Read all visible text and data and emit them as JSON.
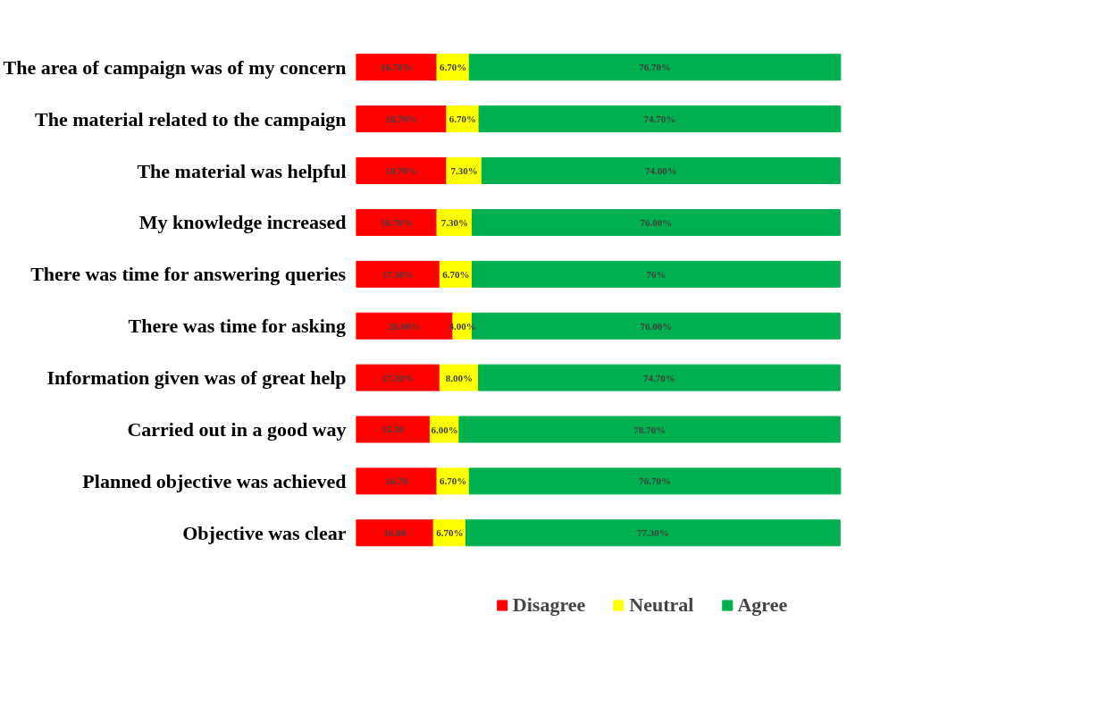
{
  "chart_data": {
    "type": "bar",
    "orientation": "horizontal",
    "stacked": true,
    "categories": [
      "The area of campaign was of my concern",
      "The material related to the campaign",
      "The material was helpful",
      "My knowledge increased",
      "There was time for answering queries",
      "There was time for asking",
      "Information given was of great help",
      "Carried out in a good way",
      "Planned objective was achieved",
      "Objective was clear"
    ],
    "series": [
      {
        "name": "Disagree",
        "color": "#ff0000",
        "values": [
          16.7,
          18.7,
          18.7,
          16.7,
          17.3,
          20.0,
          17.3,
          15.3,
          16.7,
          16.0
        ],
        "value_labels": [
          "16.70%",
          "18.70%",
          "18.70%",
          "16.70%",
          "17.30%",
          "20.00%",
          "17.30%",
          "15.30",
          "16.70",
          "16.00"
        ]
      },
      {
        "name": "Neutral",
        "color": "#ffff00",
        "values": [
          6.7,
          6.7,
          7.3,
          7.3,
          6.7,
          4.0,
          8.0,
          6.0,
          6.7,
          6.7
        ],
        "value_labels": [
          "6.70%",
          "6.70%",
          "7.30%",
          "7.30%",
          "6.70%",
          "4.00%",
          "8.00%",
          "6.00%",
          "6.70%",
          "6.70%"
        ]
      },
      {
        "name": "Agree",
        "color": "#00b050",
        "values": [
          76.7,
          74.7,
          74.0,
          76.0,
          76,
          76.0,
          74.7,
          78.7,
          76.7,
          77.3
        ],
        "value_labels": [
          "76.70%",
          "74.70%",
          "74.00%",
          "76.00%",
          "76%",
          "76.00%",
          "74.70%",
          "78.70%",
          "76.70%",
          "77.30%"
        ]
      }
    ],
    "tick_labels": "y",
    "legend": "bottom"
  }
}
